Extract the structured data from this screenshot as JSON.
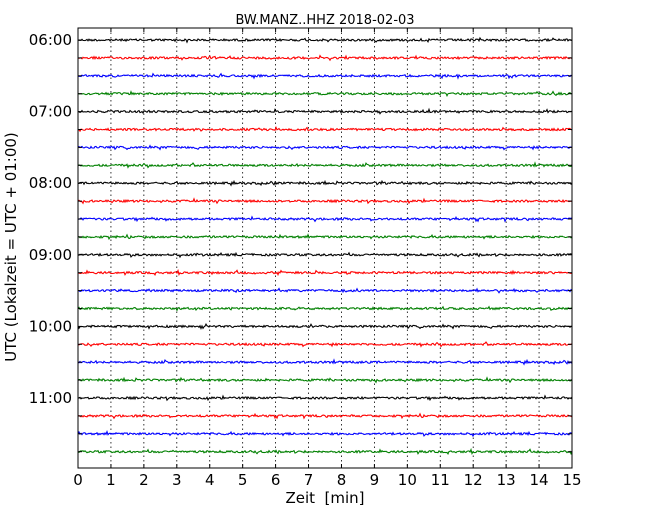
{
  "chart_data": {
    "type": "line",
    "title": "BW.MANZ..HHZ 2018-02-03",
    "xlabel": "Zeit  [min]",
    "ylabel": "UTC (Lokalzeit = UTC + 01:00)",
    "xlim": [
      0,
      15
    ],
    "x_ticks": [
      "0",
      "1",
      "2",
      "3",
      "4",
      "5",
      "6",
      "7",
      "8",
      "9",
      "10",
      "11",
      "12",
      "13",
      "14",
      "15"
    ],
    "y_tick_labels": [
      "06:00",
      "07:00",
      "08:00",
      "09:00",
      "10:00",
      "11:00"
    ],
    "grid": "vertical dotted lines at each minute",
    "trace_colors": [
      "#000000",
      "#ff0000",
      "#0000ff",
      "#008000"
    ],
    "trace_start_times": [
      "06:00",
      "06:15",
      "06:30",
      "06:45",
      "07:00",
      "07:15",
      "07:30",
      "07:45",
      "08:00",
      "08:15",
      "08:30",
      "08:45",
      "09:00",
      "09:15",
      "09:30",
      "09:45",
      "10:00",
      "10:15",
      "10:30",
      "10:45",
      "11:00",
      "11:15",
      "11:30",
      "11:45"
    ]
  }
}
